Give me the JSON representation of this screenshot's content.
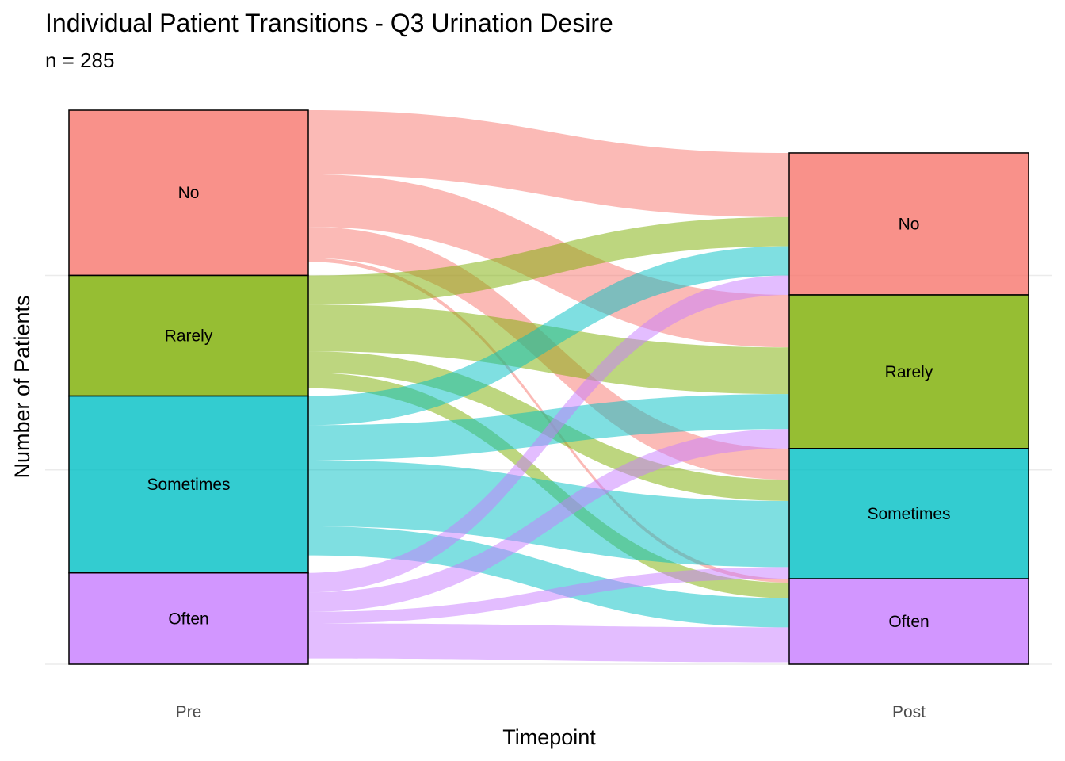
{
  "chart_data": {
    "type": "alluvial",
    "title": "Individual Patient Transitions - Q3 Urination Desire",
    "subtitle": "n = 285",
    "xlabel": "Timepoint",
    "ylabel": "Number of Patients",
    "x_categories": [
      "Pre",
      "Post"
    ],
    "strata": [
      "No",
      "Rarely",
      "Sometimes",
      "Often"
    ],
    "colors": {
      "No": "#F8766D",
      "Rarely": "#7CAE00",
      "Sometimes": "#00BFC4",
      "Often": "#C77CFF"
    },
    "ylim": [
      0,
      285
    ],
    "grid": "horizontal",
    "pre_counts": {
      "No": 85,
      "Rarely": 62,
      "Sometimes": 91,
      "Often": 47
    },
    "post_counts": {
      "No": 73,
      "Rarely": 79,
      "Sometimes": 67,
      "Often": 44
    },
    "flows": [
      {
        "from": "No",
        "to": "No",
        "value": 33
      },
      {
        "from": "No",
        "to": "Rarely",
        "value": 27
      },
      {
        "from": "No",
        "to": "Sometimes",
        "value": 16
      },
      {
        "from": "No",
        "to": "Often",
        "value": 2
      },
      {
        "from": "Rarely",
        "to": "No",
        "value": 15
      },
      {
        "from": "Rarely",
        "to": "Rarely",
        "value": 24
      },
      {
        "from": "Rarely",
        "to": "Sometimes",
        "value": 11
      },
      {
        "from": "Rarely",
        "to": "Often",
        "value": 8
      },
      {
        "from": "Sometimes",
        "to": "No",
        "value": 15
      },
      {
        "from": "Sometimes",
        "to": "Rarely",
        "value": 18
      },
      {
        "from": "Sometimes",
        "to": "Sometimes",
        "value": 34
      },
      {
        "from": "Sometimes",
        "to": "Often",
        "value": 15
      },
      {
        "from": "Often",
        "to": "No",
        "value": 10
      },
      {
        "from": "Often",
        "to": "Rarely",
        "value": 10
      },
      {
        "from": "Often",
        "to": "Sometimes",
        "value": 6
      },
      {
        "from": "Often",
        "to": "Often",
        "value": 18
      }
    ]
  }
}
